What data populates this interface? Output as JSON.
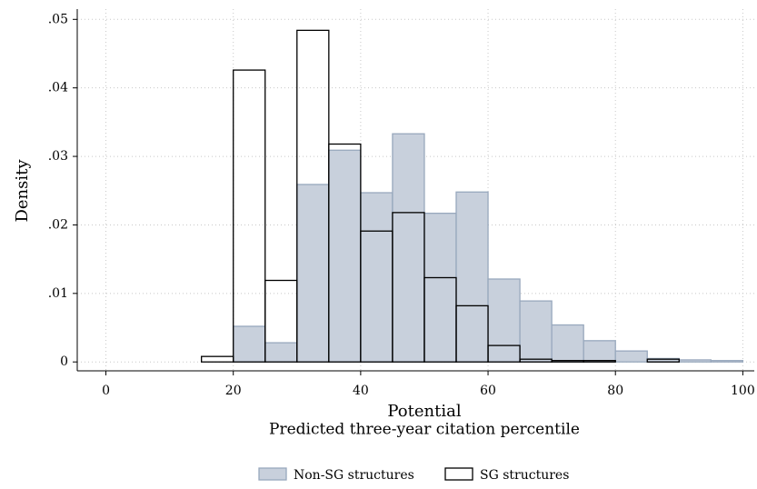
{
  "chart_data": {
    "type": "histogram",
    "xlabel": "Potential",
    "xlabel_subtitle": "Predicted three-year citation percentile",
    "ylabel": "Density",
    "bins": [
      15,
      20,
      25,
      30,
      35,
      40,
      45,
      50,
      55,
      60,
      65,
      70,
      75,
      80,
      85,
      90,
      95,
      100
    ],
    "series": [
      {
        "name": "Non-SG structures",
        "color": "#c8d0dc",
        "edgecolor": "#98a8bd",
        "values": [
          0,
          0.0052,
          0.0028,
          0.0259,
          0.0309,
          0.0247,
          0.0333,
          0.0217,
          0.0248,
          0.0121,
          0.0089,
          0.0054,
          0.0031,
          0.0016,
          0.0005,
          0.0003,
          0.0002
        ]
      },
      {
        "name": "SG structures",
        "color": "none",
        "edgecolor": "#000000",
        "values": [
          0.0008,
          0.0426,
          0.0119,
          0.0484,
          0.0318,
          0.0191,
          0.0218,
          0.0123,
          0.0082,
          0.0024,
          0.0004,
          0.0002,
          0.0002,
          0,
          0.0004,
          0,
          0
        ]
      }
    ],
    "xlim": [
      -4.5,
      101.8
    ],
    "ylim": [
      -0.0013,
      0.0515
    ],
    "xticks": [
      0,
      20,
      40,
      60,
      80,
      100
    ],
    "yticks": [
      0,
      {
        "value": 0.01,
        "label": ".01"
      },
      {
        "value": 0.02,
        "label": ".02"
      },
      {
        "value": 0.03,
        "label": ".03"
      },
      {
        "value": 0.04,
        "label": ".04"
      },
      {
        "value": 0.05,
        "label": ".05"
      }
    ],
    "grid": true,
    "legend": "bottom"
  }
}
